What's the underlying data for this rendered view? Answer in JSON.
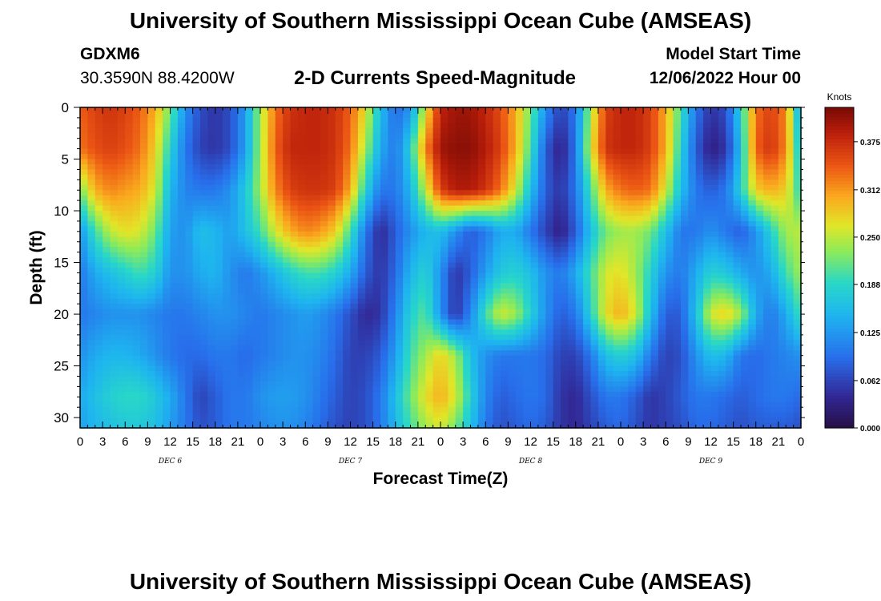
{
  "header": {
    "title": "University of Southern Mississippi Ocean Cube (AMSEAS)",
    "station_id": "GDXM6",
    "station_coords": "30.3590N  88.4200W",
    "subtitle": "2-D Currents Speed-Magnitude",
    "model_start_label": "Model Start Time",
    "model_start_value": "12/06/2022 Hour 00"
  },
  "footer": {
    "title": "University of Southern Mississippi Ocean Cube (AMSEAS)"
  },
  "chart_data": {
    "type": "heatmap",
    "title": "2-D Currents Speed-Magnitude",
    "xlabel": "Forecast Time(Z)",
    "ylabel": "Depth (ft)",
    "colorbar_label": "Knots",
    "x_hours": [
      0,
      96
    ],
    "y_depth_ft": [
      0,
      31
    ],
    "x_tick_labels": [
      "0",
      "3",
      "6",
      "9",
      "12",
      "15",
      "18",
      "21",
      "0",
      "3",
      "6",
      "9",
      "12",
      "15",
      "18",
      "21",
      "0",
      "3",
      "6",
      "9",
      "12",
      "15",
      "18",
      "21",
      "0",
      "3",
      "6",
      "9",
      "12",
      "15",
      "18",
      "21",
      "0"
    ],
    "y_tick_labels": [
      "0",
      "5",
      "10",
      "15",
      "20",
      "25",
      "30"
    ],
    "y_tick_values": [
      0,
      5,
      10,
      15,
      20,
      25,
      30
    ],
    "date_labels": [
      {
        "label": "DEC 6",
        "hour": 12
      },
      {
        "label": "DEC 7",
        "hour": 36
      },
      {
        "label": "DEC 8",
        "hour": 60
      },
      {
        "label": "DEC 9",
        "hour": 84
      }
    ],
    "colorbar_ticks": [
      "0.375",
      "0.312",
      "0.250",
      "0.188",
      "0.125",
      "0.062",
      "0.000"
    ],
    "colorbar_values": [
      0.375,
      0.312,
      0.25,
      0.188,
      0.125,
      0.062,
      0.0
    ],
    "color_range": [
      0,
      0.42
    ],
    "grid": false,
    "layers": [
      {
        "depth": 0,
        "values": [
          0.34,
          0.36,
          0.37,
          0.36,
          0.34,
          0.3,
          0.22,
          0.12,
          0.07,
          0.05,
          0.07,
          0.13,
          0.24,
          0.33,
          0.37,
          0.38,
          0.38,
          0.37,
          0.34,
          0.27,
          0.16,
          0.09,
          0.12,
          0.26,
          0.38,
          0.4,
          0.4,
          0.38,
          0.35,
          0.3,
          0.22,
          0.12,
          0.06,
          0.1,
          0.24,
          0.36,
          0.38,
          0.38,
          0.36,
          0.3,
          0.2,
          0.1,
          0.05,
          0.07,
          0.18,
          0.33,
          0.36,
          0.32,
          0.12
        ]
      },
      {
        "depth": 4,
        "values": [
          0.33,
          0.35,
          0.36,
          0.35,
          0.33,
          0.28,
          0.18,
          0.1,
          0.06,
          0.05,
          0.07,
          0.13,
          0.24,
          0.34,
          0.38,
          0.38,
          0.38,
          0.37,
          0.33,
          0.24,
          0.14,
          0.1,
          0.18,
          0.32,
          0.4,
          0.41,
          0.41,
          0.39,
          0.36,
          0.3,
          0.2,
          0.08,
          0.03,
          0.1,
          0.26,
          0.37,
          0.38,
          0.38,
          0.36,
          0.3,
          0.18,
          0.08,
          0.03,
          0.05,
          0.16,
          0.34,
          0.37,
          0.32,
          0.15
        ]
      },
      {
        "depth": 8,
        "values": [
          0.22,
          0.3,
          0.32,
          0.31,
          0.3,
          0.26,
          0.15,
          0.11,
          0.1,
          0.1,
          0.12,
          0.17,
          0.24,
          0.32,
          0.36,
          0.37,
          0.37,
          0.36,
          0.3,
          0.18,
          0.1,
          0.1,
          0.15,
          0.25,
          0.36,
          0.39,
          0.39,
          0.37,
          0.33,
          0.26,
          0.16,
          0.08,
          0.05,
          0.1,
          0.2,
          0.3,
          0.33,
          0.34,
          0.33,
          0.26,
          0.16,
          0.1,
          0.08,
          0.1,
          0.18,
          0.28,
          0.3,
          0.28,
          0.18
        ]
      },
      {
        "depth": 12,
        "values": [
          0.12,
          0.2,
          0.25,
          0.27,
          0.26,
          0.22,
          0.13,
          0.12,
          0.16,
          0.15,
          0.13,
          0.16,
          0.2,
          0.26,
          0.3,
          0.32,
          0.31,
          0.28,
          0.2,
          0.1,
          0.04,
          0.08,
          0.12,
          0.15,
          0.16,
          0.12,
          0.08,
          0.1,
          0.14,
          0.14,
          0.1,
          0.06,
          0.03,
          0.08,
          0.16,
          0.22,
          0.24,
          0.24,
          0.22,
          0.16,
          0.1,
          0.1,
          0.12,
          0.1,
          0.08,
          0.12,
          0.18,
          0.24,
          0.25
        ]
      },
      {
        "depth": 16,
        "values": [
          0.1,
          0.14,
          0.16,
          0.18,
          0.2,
          0.18,
          0.12,
          0.12,
          0.14,
          0.15,
          0.12,
          0.1,
          0.12,
          0.15,
          0.18,
          0.2,
          0.2,
          0.18,
          0.14,
          0.08,
          0.05,
          0.09,
          0.15,
          0.18,
          0.12,
          0.05,
          0.08,
          0.13,
          0.17,
          0.18,
          0.16,
          0.12,
          0.1,
          0.14,
          0.2,
          0.26,
          0.27,
          0.24,
          0.18,
          0.12,
          0.1,
          0.14,
          0.18,
          0.17,
          0.14,
          0.12,
          0.14,
          0.2,
          0.24
        ]
      },
      {
        "depth": 20,
        "values": [
          0.1,
          0.11,
          0.12,
          0.12,
          0.12,
          0.11,
          0.1,
          0.1,
          0.11,
          0.12,
          0.12,
          0.11,
          0.1,
          0.11,
          0.12,
          0.13,
          0.12,
          0.1,
          0.07,
          0.04,
          0.05,
          0.11,
          0.18,
          0.21,
          0.12,
          0.05,
          0.11,
          0.2,
          0.26,
          0.24,
          0.18,
          0.12,
          0.08,
          0.1,
          0.18,
          0.27,
          0.3,
          0.26,
          0.16,
          0.08,
          0.08,
          0.16,
          0.26,
          0.28,
          0.24,
          0.14,
          0.1,
          0.14,
          0.2
        ]
      },
      {
        "depth": 24,
        "values": [
          0.12,
          0.14,
          0.15,
          0.15,
          0.14,
          0.12,
          0.1,
          0.09,
          0.09,
          0.1,
          0.1,
          0.09,
          0.1,
          0.11,
          0.12,
          0.12,
          0.11,
          0.09,
          0.06,
          0.06,
          0.08,
          0.13,
          0.2,
          0.24,
          0.28,
          0.24,
          0.16,
          0.12,
          0.1,
          0.1,
          0.1,
          0.09,
          0.06,
          0.06,
          0.1,
          0.16,
          0.18,
          0.16,
          0.1,
          0.06,
          0.07,
          0.12,
          0.16,
          0.15,
          0.1,
          0.09,
          0.1,
          0.11,
          0.12
        ]
      },
      {
        "depth": 28,
        "values": [
          0.14,
          0.16,
          0.18,
          0.19,
          0.19,
          0.17,
          0.14,
          0.1,
          0.06,
          0.08,
          0.1,
          0.1,
          0.12,
          0.13,
          0.13,
          0.12,
          0.1,
          0.08,
          0.06,
          0.07,
          0.1,
          0.16,
          0.22,
          0.27,
          0.3,
          0.26,
          0.18,
          0.11,
          0.08,
          0.09,
          0.1,
          0.09,
          0.05,
          0.04,
          0.07,
          0.1,
          0.1,
          0.08,
          0.05,
          0.06,
          0.08,
          0.1,
          0.1,
          0.09,
          0.08,
          0.09,
          0.1,
          0.1,
          0.09
        ]
      },
      {
        "depth": 31,
        "values": [
          0.13,
          0.15,
          0.16,
          0.17,
          0.17,
          0.16,
          0.13,
          0.1,
          0.07,
          0.08,
          0.1,
          0.1,
          0.11,
          0.12,
          0.12,
          0.11,
          0.09,
          0.07,
          0.06,
          0.07,
          0.1,
          0.15,
          0.2,
          0.24,
          0.26,
          0.22,
          0.16,
          0.1,
          0.07,
          0.08,
          0.09,
          0.08,
          0.05,
          0.04,
          0.06,
          0.08,
          0.09,
          0.07,
          0.05,
          0.06,
          0.07,
          0.09,
          0.09,
          0.08,
          0.07,
          0.08,
          0.08,
          0.08,
          0.07
        ]
      }
    ]
  }
}
